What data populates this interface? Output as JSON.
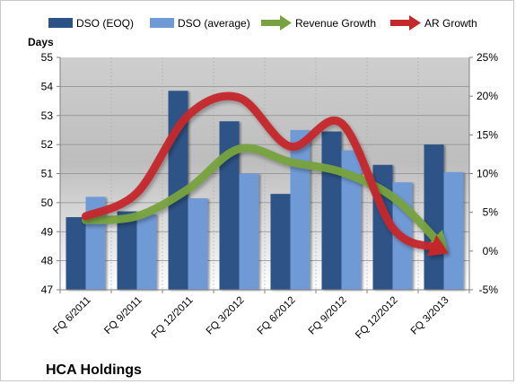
{
  "chart_data": {
    "type": "bar",
    "title": "HCA Holdings",
    "ylabel": "Days",
    "ylim": [
      47,
      55
    ],
    "y2lim": [
      -5,
      25
    ],
    "y_ticks": [
      "47",
      "48",
      "49",
      "50",
      "51",
      "52",
      "53",
      "54",
      "55"
    ],
    "y2_ticks": [
      "-5%",
      "0%",
      "5%",
      "10%",
      "15%",
      "20%",
      "25%"
    ],
    "categories": [
      "FQ 6/2011",
      "FQ 9/2011",
      "FQ 12/2011",
      "FQ 3/2012",
      "FQ 6/2012",
      "FQ 9/2012",
      "FQ 12/2012",
      "FQ 3/2013"
    ],
    "series": [
      {
        "name": "DSO (EOQ)",
        "type": "bar",
        "axis": "left",
        "color": "#2d5386",
        "values": [
          49.5,
          49.7,
          53.85,
          52.8,
          50.3,
          52.45,
          51.3,
          52.0
        ]
      },
      {
        "name": "DSO (average)",
        "type": "bar",
        "axis": "left",
        "color": "#6f9ad6",
        "values": [
          50.2,
          49.6,
          50.15,
          51.0,
          52.5,
          51.8,
          50.7,
          51.05
        ]
      },
      {
        "name": "Revenue Growth",
        "type": "line",
        "axis": "right",
        "color": "#77a23f",
        "values": [
          4.0,
          4.5,
          8.0,
          13.2,
          11.5,
          10.2,
          7.0,
          0.5
        ]
      },
      {
        "name": "AR Growth",
        "type": "line",
        "axis": "right",
        "color": "#c4282b",
        "values": [
          4.5,
          7.5,
          17.5,
          19.8,
          13.5,
          16.5,
          3.0,
          0.0
        ]
      }
    ],
    "grid": true,
    "legend": "top"
  }
}
